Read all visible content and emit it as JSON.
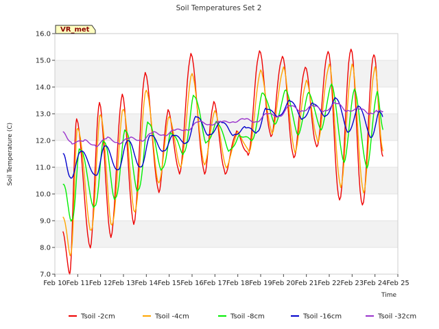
{
  "chart_data": {
    "type": "line",
    "title": "Soil Temperatures Set 2",
    "xlabel": "Time",
    "ylabel": "Soil Temperature (C)",
    "badge": "VR_met",
    "ylim": [
      7.0,
      16.0
    ],
    "yticks": [
      "7.0",
      "8.0",
      "9.0",
      "10.0",
      "11.0",
      "12.0",
      "13.0",
      "14.0",
      "15.0",
      "16.0"
    ],
    "xlim": [
      "Feb 10",
      "Feb 25"
    ],
    "xticks": [
      "Feb 10",
      "Feb 11",
      "Feb 12",
      "Feb 13",
      "Feb 14",
      "Feb 15",
      "Feb 16",
      "Feb 17",
      "Feb 18",
      "Feb 19",
      "Feb 20",
      "Feb 21",
      "Feb 22",
      "Feb 23",
      "Feb 24",
      "Feb 25"
    ],
    "grid": true,
    "legend_position": "bottom",
    "x_days_note": "daily extrema, x in days of February",
    "series": [
      {
        "name": "Tsoil -2cm",
        "color": "#ee0000",
        "x": [
          10.35,
          10.65,
          10.95,
          11.55,
          11.95,
          12.45,
          12.95,
          13.45,
          13.95,
          14.55,
          14.95,
          15.45,
          15.95,
          16.55,
          16.95,
          17.45,
          17.95,
          18.45,
          18.95,
          19.45,
          19.95,
          20.45,
          20.95,
          21.45,
          21.95,
          22.45,
          22.95,
          23.45,
          23.95,
          24.35
        ],
        "y": [
          8.6,
          7.0,
          12.8,
          8.0,
          13.4,
          8.4,
          13.7,
          8.9,
          14.5,
          10.1,
          13.1,
          10.8,
          15.2,
          10.8,
          13.4,
          10.8,
          12.3,
          11.5,
          15.3,
          12.2,
          15.1,
          11.4,
          14.7,
          11.8,
          15.3,
          9.8,
          15.4,
          9.6,
          15.2,
          11.4
        ]
      },
      {
        "name": "Tsoil -4cm",
        "color": "#ffa500",
        "x": [
          10.35,
          10.7,
          11.0,
          11.6,
          12.0,
          12.5,
          13.0,
          13.5,
          14.0,
          14.55,
          15.0,
          15.5,
          16.0,
          16.55,
          17.0,
          17.5,
          18.0,
          18.5,
          19.0,
          19.5,
          20.0,
          20.5,
          21.0,
          21.5,
          22.0,
          22.5,
          23.0,
          23.5,
          24.0,
          24.35
        ],
        "y": [
          9.2,
          7.7,
          12.5,
          8.6,
          13.0,
          8.8,
          13.2,
          9.3,
          13.9,
          10.4,
          12.9,
          11.0,
          14.5,
          11.1,
          13.1,
          11.0,
          12.3,
          11.6,
          14.6,
          12.3,
          14.7,
          11.6,
          14.2,
          12.0,
          14.8,
          10.3,
          14.8,
          10.1,
          14.7,
          11.6
        ]
      },
      {
        "name": "Tsoil -8cm",
        "color": "#00ee00",
        "x": [
          10.35,
          10.75,
          11.1,
          11.75,
          12.15,
          12.65,
          13.1,
          13.65,
          14.1,
          14.7,
          15.1,
          15.65,
          16.1,
          16.65,
          17.1,
          17.65,
          18.1,
          18.65,
          19.1,
          19.65,
          20.1,
          20.65,
          21.1,
          21.65,
          22.1,
          22.65,
          23.1,
          23.65,
          24.1,
          24.35
        ],
        "y": [
          10.4,
          9.0,
          11.7,
          9.5,
          12.0,
          9.8,
          12.4,
          10.1,
          12.7,
          10.9,
          12.3,
          11.5,
          13.7,
          11.9,
          12.7,
          11.6,
          12.2,
          12.0,
          13.8,
          12.6,
          13.9,
          12.2,
          13.8,
          12.4,
          14.1,
          11.2,
          13.9,
          11.0,
          13.8,
          12.4
        ]
      },
      {
        "name": "Tsoil -16cm",
        "color": "#0000cc",
        "x": [
          10.35,
          10.7,
          11.15,
          11.8,
          12.2,
          12.75,
          13.2,
          13.75,
          14.2,
          14.75,
          15.2,
          15.75,
          16.2,
          16.75,
          17.3,
          17.85,
          18.35,
          18.85,
          19.25,
          19.8,
          20.3,
          20.85,
          21.3,
          21.85,
          22.3,
          22.85,
          23.3,
          23.85,
          24.2,
          24.35
        ],
        "y": [
          11.5,
          10.6,
          11.6,
          10.7,
          11.8,
          10.9,
          12.0,
          11.0,
          12.2,
          11.6,
          12.2,
          11.9,
          12.9,
          12.2,
          12.7,
          12.2,
          12.5,
          12.3,
          13.2,
          12.9,
          13.5,
          12.8,
          13.4,
          12.9,
          13.6,
          12.3,
          13.3,
          12.1,
          13.1,
          12.9
        ]
      },
      {
        "name": "Tsoil -32cm",
        "color": "#9932cc",
        "x": [
          10.35,
          10.75,
          11.3,
          11.8,
          12.3,
          12.8,
          13.3,
          13.8,
          14.3,
          14.8,
          15.3,
          15.8,
          16.3,
          16.8,
          17.3,
          17.8,
          18.3,
          18.8,
          19.3,
          19.8,
          20.3,
          20.8,
          21.3,
          21.8,
          22.3,
          22.8,
          23.3,
          23.8,
          24.1,
          24.35
        ],
        "y": [
          12.3,
          11.9,
          12.0,
          11.8,
          12.1,
          11.9,
          12.1,
          12.0,
          12.3,
          12.2,
          12.4,
          12.4,
          12.7,
          12.6,
          12.7,
          12.7,
          12.8,
          12.7,
          13.0,
          12.9,
          13.3,
          13.1,
          13.3,
          13.1,
          13.4,
          13.1,
          13.2,
          13.0,
          13.1,
          13.1
        ]
      }
    ]
  }
}
